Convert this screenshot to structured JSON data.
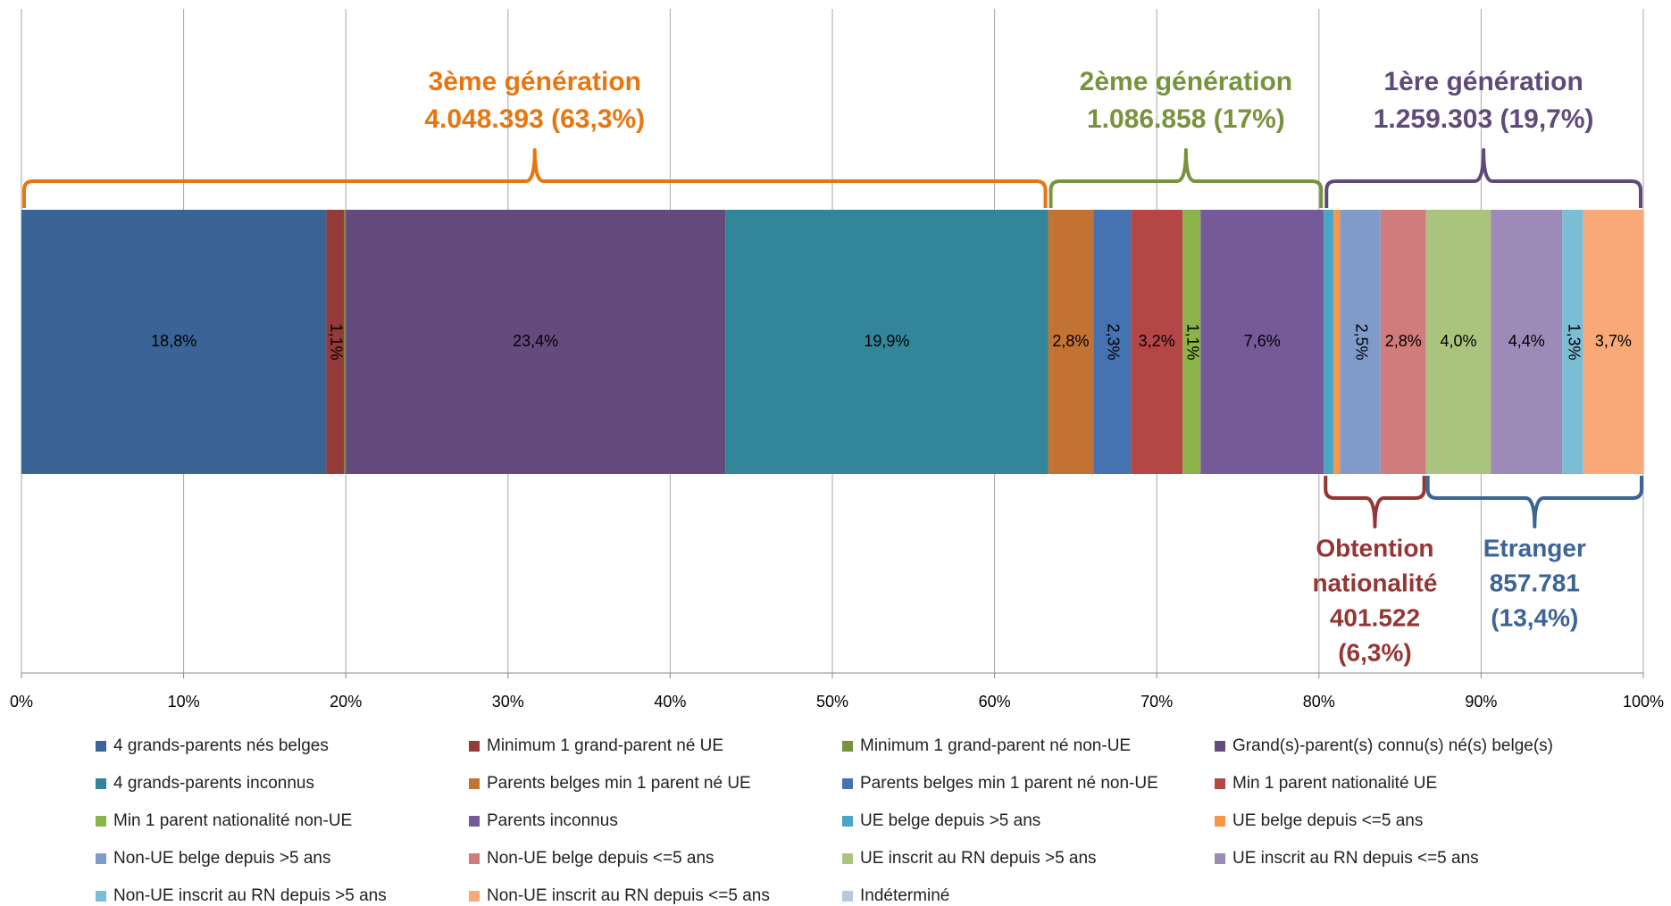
{
  "chart_data": {
    "type": "stacked-bar-100",
    "xlim": [
      0,
      100
    ],
    "xticks": [
      {
        "value": 0,
        "label": "0%"
      },
      {
        "value": 10,
        "label": "10%"
      },
      {
        "value": 20,
        "label": "20%"
      },
      {
        "value": 30,
        "label": "30%"
      },
      {
        "value": 40,
        "label": "40%"
      },
      {
        "value": 50,
        "label": "50%"
      },
      {
        "value": 60,
        "label": "60%"
      },
      {
        "value": 70,
        "label": "70%"
      },
      {
        "value": 80,
        "label": "80%"
      },
      {
        "value": 90,
        "label": "90%"
      },
      {
        "value": 100,
        "label": "100%"
      }
    ],
    "grid": true,
    "legend": "bottom",
    "series": [
      {
        "name": "4 grands-parents nés belges",
        "color": "#3b6496",
        "values": [
          18.8
        ],
        "value_labels": [
          "18,8%"
        ]
      },
      {
        "name": "Minimum 1 grand-parent né UE",
        "color": "#943a38",
        "values": [
          1.1
        ],
        "value_labels": [
          "1,1%"
        ]
      },
      {
        "name": "Minimum 1 grand-parent né non-UE",
        "color": "#77933c",
        "values": [
          0.1
        ],
        "value_labels": [
          null
        ]
      },
      {
        "name": "Grand(s)-parent(s) connu(s) né(s) belge(s)",
        "color": "#634c7d",
        "values": [
          23.4
        ],
        "value_labels": [
          "23,4%"
        ]
      },
      {
        "name": "4 grands-parents inconnus",
        "color": "#33869a",
        "values": [
          19.9
        ],
        "value_labels": [
          "19,9%"
        ]
      },
      {
        "name": "Parents belges min 1 parent né UE",
        "color": "#c27233",
        "values": [
          2.8
        ],
        "value_labels": [
          "2,8%"
        ]
      },
      {
        "name": "Parents belges min 1 parent né non-UE",
        "color": "#4572b0",
        "values": [
          2.3
        ],
        "value_labels": [
          "2,3%"
        ]
      },
      {
        "name": "Min 1 parent nationalité UE",
        "color": "#b54646",
        "values": [
          3.2
        ],
        "value_labels": [
          "3,2%"
        ]
      },
      {
        "name": "Min 1 parent nationalité non-UE",
        "color": "#8cb34a",
        "values": [
          1.1
        ],
        "value_labels": [
          "1,1%"
        ]
      },
      {
        "name": "Parents inconnus",
        "color": "#745a98",
        "values": [
          7.6
        ],
        "value_labels": [
          "7,6%"
        ]
      },
      {
        "name": "UE belge depuis >5 ans",
        "color": "#4aa6c4",
        "values": [
          0.6
        ],
        "value_labels": [
          null
        ]
      },
      {
        "name": "UE belge depuis <=5 ans",
        "color": "#f79646",
        "values": [
          0.4
        ],
        "value_labels": [
          null
        ]
      },
      {
        "name": "Non-UE belge depuis >5 ans",
        "color": "#7f9bc9",
        "values": [
          2.5
        ],
        "value_labels": [
          "2,5%"
        ]
      },
      {
        "name": "Non-UE belge depuis <=5 ans",
        "color": "#d07c7c",
        "values": [
          2.8
        ],
        "value_labels": [
          "2,8%"
        ]
      },
      {
        "name": "UE inscrit au RN depuis >5 ans",
        "color": "#aac47e",
        "values": [
          4.0
        ],
        "value_labels": [
          "4,0%"
        ]
      },
      {
        "name": "UE inscrit au RN depuis <=5 ans",
        "color": "#9d8ab8",
        "values": [
          4.4
        ],
        "value_labels": [
          "4,4%"
        ]
      },
      {
        "name": "Non-UE inscrit au RN depuis >5 ans",
        "color": "#7cbdd6",
        "values": [
          1.3
        ],
        "value_labels": [
          "1,3%"
        ]
      },
      {
        "name": "Non-UE inscrit au RN depuis <=5 ans",
        "color": "#f9a878",
        "values": [
          3.7
        ],
        "value_labels": [
          "3,7%"
        ]
      },
      {
        "name": "Indéterminé",
        "color": "#b8c8e0",
        "values": [
          0
        ],
        "value_labels": [
          null
        ]
      }
    ],
    "annotations": {
      "top": [
        {
          "lines": [
            "3ème génération",
            "4.048.393 (63,3%)"
          ],
          "value": 63.3,
          "color": "#e8760f"
        },
        {
          "lines": [
            "2ème génération",
            "1.086.858 (17%)"
          ],
          "value": 17,
          "color": "#77933c"
        },
        {
          "lines": [
            "1ère génération",
            "1.259.303 (19,7%)"
          ],
          "value": 19.7,
          "color": "#604a7b"
        }
      ],
      "bottom": [
        {
          "lines": [
            "Obtention",
            "nationalité",
            "401.522",
            "(6,3%)"
          ],
          "value": 6.3,
          "color": "#943634"
        },
        {
          "lines": [
            "Etranger",
            "857.781",
            "(13,4%)"
          ],
          "value": 13.4,
          "color": "#3c6496"
        }
      ]
    }
  }
}
